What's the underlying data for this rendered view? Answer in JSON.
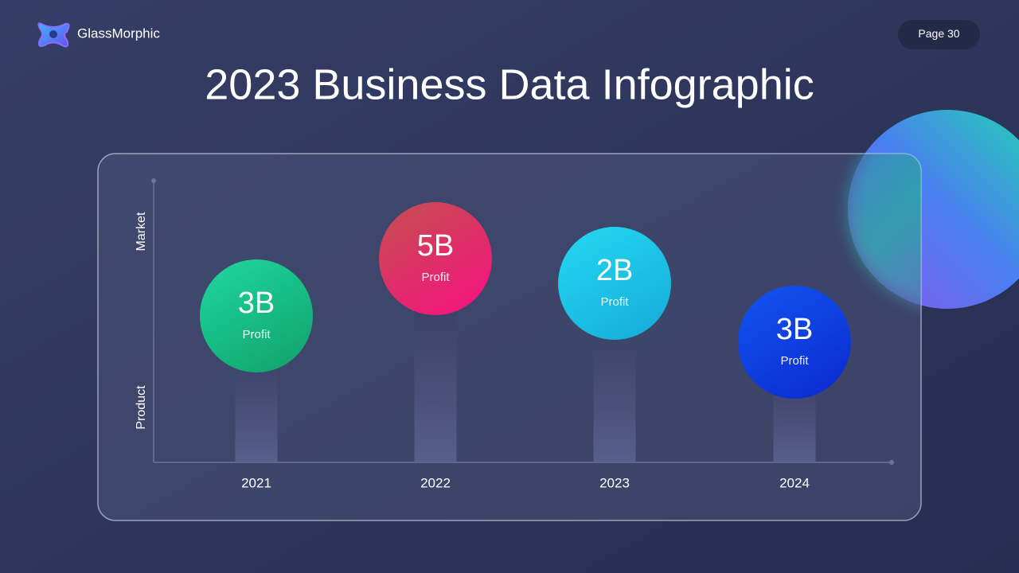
{
  "header": {
    "brand": "GlassMorphic",
    "page": "Page 30"
  },
  "title": "2023 Business Data Infographic",
  "axis": {
    "top_label": "Market",
    "bottom_label": "Product"
  },
  "items": [
    {
      "year": "2021",
      "value": "3B",
      "label": "Profit",
      "color": [
        "#1ed8a0",
        "#13a872"
      ]
    },
    {
      "year": "2022",
      "value": "5B",
      "label": "Profit",
      "color": [
        "#c4504e",
        "#f0197a"
      ]
    },
    {
      "year": "2023",
      "value": "2B",
      "label": "Profit",
      "color": [
        "#25d8f2",
        "#17b2dc"
      ]
    },
    {
      "year": "2024",
      "value": "3B",
      "label": "Profit",
      "color": [
        "#1255f0",
        "#0c2fd4"
      ]
    }
  ]
}
